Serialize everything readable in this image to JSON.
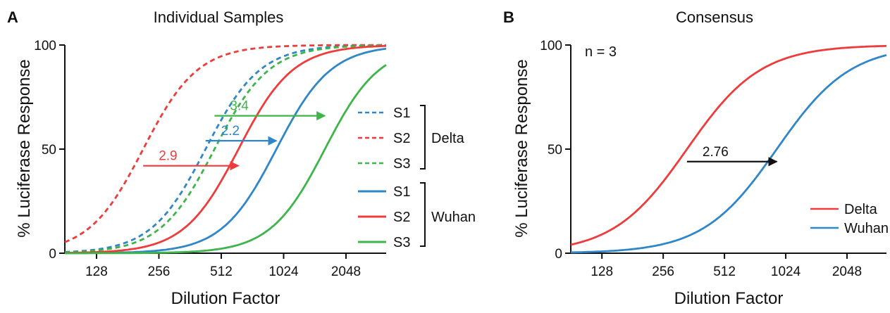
{
  "chart_data": [
    {
      "type": "line",
      "panel_label": "A",
      "title": "Individual Samples",
      "xlabel": "Dilution Factor",
      "ylabel": "% Luciferase Response",
      "x_scale": "log2",
      "x_ticks": [
        128,
        256,
        512,
        1024,
        2048
      ],
      "x_tick_labels": [
        "128",
        "256",
        "512",
        "1024",
        "2048"
      ],
      "xlim": [
        90,
        3200
      ],
      "y_ticks": [
        0,
        50,
        100
      ],
      "y_tick_labels": [
        "0",
        "50",
        "100"
      ],
      "ylim": [
        0,
        100
      ],
      "grid": false,
      "legend_position": "right",
      "legend_groups": [
        {
          "label": "Delta",
          "line_style": "dashed",
          "entries": [
            "S1",
            "S2",
            "S3"
          ]
        },
        {
          "label": "Wuhan",
          "line_style": "solid",
          "entries": [
            "S1",
            "S2",
            "S3"
          ]
        }
      ],
      "series": [
        {
          "name": "S1",
          "group": "Delta",
          "style": "dashed",
          "color": "#2f86c8",
          "ec50": 430,
          "hill": 3.3,
          "x": [
            90,
            128,
            256,
            512,
            1024,
            2048,
            3200
          ],
          "y": [
            3,
            7,
            34,
            77,
            95,
            99,
            100
          ]
        },
        {
          "name": "S2",
          "group": "Delta",
          "style": "dashed",
          "color": "#ee3b3b",
          "ec50": 215,
          "hill": 3.3,
          "x": [
            90,
            128,
            256,
            512,
            1024,
            2048,
            3200
          ],
          "y": [
            9,
            26,
            63,
            93,
            99,
            100,
            100
          ]
        },
        {
          "name": "S3",
          "group": "Delta",
          "style": "dashed",
          "color": "#3db54a",
          "ec50": 475,
          "hill": 3.3,
          "x": [
            90,
            128,
            256,
            512,
            1024,
            2048,
            3200
          ],
          "y": [
            2,
            5,
            29,
            64,
            94,
            99,
            100
          ]
        },
        {
          "name": "S1",
          "group": "Wuhan",
          "style": "solid",
          "color": "#2f86c8",
          "ec50": 945,
          "hill": 3.3,
          "x": [
            90,
            128,
            256,
            512,
            1024,
            2048,
            3200
          ],
          "y": [
            0,
            1,
            3,
            13,
            57,
            92,
            97
          ]
        },
        {
          "name": "S2",
          "group": "Wuhan",
          "style": "solid",
          "color": "#ee3b3b",
          "ec50": 620,
          "hill": 3.3,
          "x": [
            90,
            128,
            256,
            512,
            1024,
            2048,
            3200
          ],
          "y": [
            1,
            2,
            9,
            36,
            82,
            96,
            99
          ]
        },
        {
          "name": "S3",
          "group": "Wuhan",
          "style": "solid",
          "color": "#3db54a",
          "ec50": 1620,
          "hill": 3.3,
          "x": [
            90,
            128,
            256,
            512,
            1024,
            2048,
            3200
          ],
          "y": [
            0,
            0,
            1,
            3,
            12,
            64,
            89
          ]
        }
      ],
      "annotations": [
        {
          "text": "2.9",
          "color": "#ee3b3b",
          "y": 42,
          "x_from": 215,
          "x_to": 620
        },
        {
          "text": "2.2",
          "color": "#2f86c8",
          "y": 54,
          "x_from": 430,
          "x_to": 945
        },
        {
          "text": "3.4",
          "color": "#3db54a",
          "y": 66,
          "x_from": 475,
          "x_to": 1620
        }
      ]
    },
    {
      "type": "line",
      "panel_label": "B",
      "title": "Consensus",
      "xlabel": "Dilution Factor",
      "ylabel": "% Luciferase Response",
      "x_scale": "log2",
      "x_ticks": [
        128,
        256,
        512,
        1024,
        2048
      ],
      "x_tick_labels": [
        "128",
        "256",
        "512",
        "1024",
        "2048"
      ],
      "xlim": [
        90,
        3200
      ],
      "y_ticks": [
        0,
        50,
        100
      ],
      "y_tick_labels": [
        "0",
        "50",
        "100"
      ],
      "ylim": [
        0,
        100
      ],
      "grid": false,
      "legend_position": "bottom-right",
      "corner_note": "n = 3",
      "series": [
        {
          "name": "Delta",
          "style": "solid",
          "color": "#ee3b3b",
          "ec50": 335,
          "hill": 2.4,
          "x": [
            90,
            128,
            256,
            512,
            1024,
            2048,
            3200
          ],
          "y": [
            4,
            9,
            34,
            74,
            93,
            99,
            100
          ]
        },
        {
          "name": "Wuhan",
          "style": "solid",
          "color": "#2f86c8",
          "ec50": 925,
          "hill": 2.4,
          "x": [
            90,
            128,
            256,
            512,
            1024,
            2048,
            3200
          ],
          "y": [
            0,
            1,
            4,
            20,
            56,
            86,
            96
          ]
        }
      ],
      "annotations": [
        {
          "text": "2.76",
          "color": "#111111",
          "y": 44,
          "x_from": 335,
          "x_to": 925
        }
      ]
    }
  ]
}
